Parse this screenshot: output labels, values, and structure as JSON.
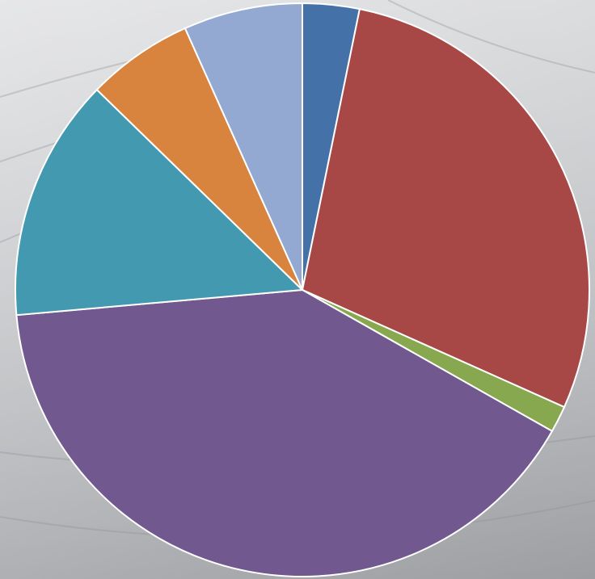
{
  "chart_data": {
    "type": "pie",
    "title": "",
    "legend": "none",
    "start_angle_deg": 0,
    "direction": "clockwise",
    "slices": [
      {
        "value": 3.2,
        "color": "#4472a8"
      },
      {
        "value": 28.5,
        "color": "#a84846"
      },
      {
        "value": 1.5,
        "color": "#87a84e"
      },
      {
        "value": 40.4,
        "color": "#71598f"
      },
      {
        "value": 13.7,
        "color": "#4399b0"
      },
      {
        "value": 6.0,
        "color": "#d8843f"
      },
      {
        "value": 6.7,
        "color": "#94a9d2"
      }
    ]
  }
}
